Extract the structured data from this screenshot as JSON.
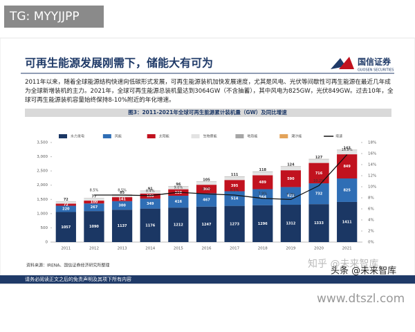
{
  "tag": "TG: MYYJJPP",
  "header": {
    "title": "可再生能源发展刚需下，储能大有可为",
    "logo": "国信证券",
    "logo_en": "GUOSEN SECURITIES",
    "body": "2011年以来，随着全球能源结构快速向低碳形式发展，可再生能源装机加快发展速度，尤其是风电、光伏等间歇性可再生能源在最近几年成为全球新增装机的主力。2021年，全球可再生能源总装机量达到3064GW（不含抽蓄），其中风电为825GW，光伏849GW。过去10年，全球可再生能源装机容量始终保持8-10%附近的年化增速。"
  },
  "footer": {
    "source": "资料来源：IRENA、国信证券经济研究所整理",
    "disclaimer": "请务必阅读正文之后的免责声明及其项下所有内容"
  },
  "watermarks": [
    "知乎 @未来智库",
    "头条 @未来智库",
    "www.dtszl.com"
  ],
  "chart_data": {
    "type": "bar",
    "stacked": true,
    "title": "图3：2011-2021年全球可再生能源累计装机量（GW）及同比增速",
    "categories": [
      "2011",
      "2012",
      "2013",
      "2014",
      "2015",
      "2016",
      "2017",
      "2018",
      "2019",
      "2020",
      "2021"
    ],
    "series": [
      {
        "name": "水力发电",
        "color": "#1b3764",
        "label_color": "#fff",
        "values": [
          1057,
          1090,
          1137,
          1176,
          1212,
          1247,
          1273,
          1296,
          1312,
          1333,
          1411
        ]
      },
      {
        "name": "风能",
        "color": "#2f6eb5",
        "label_color": "#fff",
        "values": [
          220,
          267,
          300,
          349,
          416,
          467,
          514,
          564,
          622,
          732,
          825
        ]
      },
      {
        "name": "太阳能",
        "color": "#c1121f",
        "label_color": "#fff",
        "values": [
          72,
          100,
          141,
          180,
          228,
          300,
          395,
          489,
          590,
          716,
          849
        ]
      },
      {
        "name": "生物质能",
        "color": "#e3e3e3",
        "label_color": "#333",
        "values": [
          72,
          77,
          85,
          91,
          96,
          105,
          111,
          118,
          124,
          127,
          143
        ]
      },
      {
        "name": "地热能",
        "color": "#a6a6a6",
        "values": [
          10,
          11,
          11,
          12,
          12,
          13,
          14,
          14,
          14,
          14,
          16
        ]
      },
      {
        "name": "潮汐能",
        "color": "#e3a35a",
        "values": [
          0.5,
          0.5,
          0.5,
          0.5,
          0.5,
          0.5,
          0.5,
          0.5,
          0.5,
          0.5,
          0.5
        ]
      },
      {
        "name": "增速",
        "color": "#111111",
        "axis": "y2",
        "values": [
          null,
          8.5,
          8.5,
          8.4,
          9.0,
          8.7,
          8.5,
          7.9,
          7.7,
          10.2,
          15.8
        ],
        "value_labels": [
          null,
          "8.5%",
          "8.5%",
          "8.4%",
          "9.0%",
          "8.7%",
          "8.5%",
          "7.9%",
          "7.7%",
          "10.2%",
          "15.8%"
        ]
      }
    ],
    "ylim": [
      0,
      3500
    ],
    "yticks": [
      0,
      500,
      {
        "value": 1000,
        "label": "1,000"
      },
      {
        "value": 1500,
        "label": "1,500"
      },
      {
        "value": 2000,
        "label": "2,000"
      },
      {
        "value": 2500,
        "label": "2,500"
      },
      {
        "value": 3000,
        "label": "3,000"
      },
      {
        "value": 3500,
        "label": "3,500"
      }
    ],
    "y2lim": [
      0,
      18
    ],
    "y2ticks": [
      {
        "value": 0,
        "label": "0%"
      },
      {
        "value": 2,
        "label": "2%"
      },
      {
        "value": 4,
        "label": "4%"
      },
      {
        "value": 6,
        "label": "6%"
      },
      {
        "value": 8,
        "label": "8%"
      },
      {
        "value": 10,
        "label": "10%"
      },
      {
        "value": 12,
        "label": "12%"
      },
      {
        "value": 14,
        "label": "14%"
      },
      {
        "value": 16,
        "label": "16%"
      },
      {
        "value": 18,
        "label": "18%"
      }
    ],
    "grid": false
  }
}
